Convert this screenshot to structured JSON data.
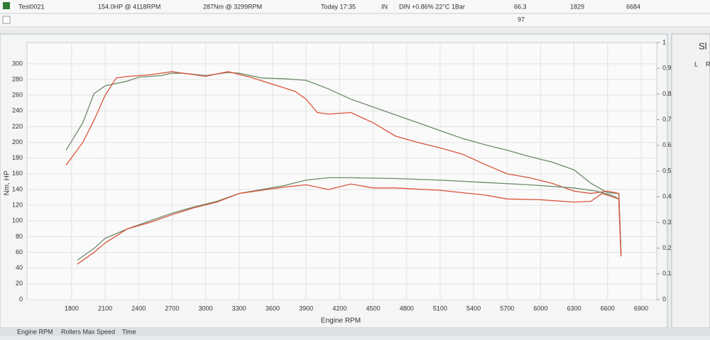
{
  "table": {
    "rows": [
      [
        "Test0021",
        "154.0HP @ 4118RPM",
        "287Nm @ 3299RPM",
        "Today 17:35",
        "IN",
        "DIN +0.86% 22°C 1Bar",
        "66.3",
        "1829",
        "6684"
      ],
      [
        "97"
      ]
    ]
  },
  "side_panel": {
    "title": "Sl",
    "columns": [
      "L",
      "R"
    ]
  },
  "tabs": [
    "Engine RPM",
    "Rollers Max Speed",
    "Time"
  ],
  "chart_data": {
    "type": "line",
    "x_label": "Engine RPM",
    "y_label": "Nm, HP",
    "xlim": [
      1400,
      7040
    ],
    "xticks": [
      1800,
      2100,
      2400,
      2700,
      3000,
      3300,
      3600,
      3900,
      4200,
      4500,
      4800,
      5100,
      5400,
      5700,
      6000,
      6300,
      6600,
      6900
    ],
    "ylim": [
      0,
      327
    ],
    "yticks": [
      0,
      20,
      40,
      60,
      80,
      100,
      120,
      140,
      160,
      180,
      200,
      220,
      240,
      260,
      280,
      300
    ],
    "y2lim": [
      0,
      1
    ],
    "y2ticks": [
      0,
      0.1,
      0.2,
      0.3,
      0.4,
      0.5,
      0.6,
      0.7,
      0.8,
      0.9,
      1
    ],
    "grid": true,
    "series": [
      {
        "color": "#6e8a6a",
        "x": [
          1750,
          1900,
          2000,
          2100,
          2200,
          2300,
          2400,
          2600,
          2700,
          2800,
          3000,
          3200,
          3300,
          3500,
          3700,
          3900,
          4100,
          4300,
          4500,
          4700,
          4900,
          5100,
          5300,
          5500,
          5700,
          5900,
          6100,
          6300,
          6450,
          6600,
          6700,
          6720
        ],
        "values": [
          190,
          225,
          262,
          272,
          275,
          278,
          283,
          285,
          288,
          288,
          285,
          289,
          288,
          282,
          281,
          279,
          268,
          255,
          245,
          235,
          225,
          215,
          205,
          197,
          190,
          182,
          175,
          165,
          148,
          136,
          135,
          60
        ]
      },
      {
        "color": "#d9543a",
        "x": [
          1750,
          1900,
          2000,
          2100,
          2200,
          2300,
          2500,
          2700,
          2900,
          3000,
          3200,
          3400,
          3600,
          3800,
          3900,
          4000,
          4100,
          4300,
          4500,
          4700,
          4900,
          5100,
          5300,
          5500,
          5700,
          5900,
          6100,
          6300,
          6450,
          6600,
          6700,
          6720
        ],
        "values": [
          171,
          200,
          228,
          260,
          282,
          284,
          286,
          290,
          286,
          284,
          290,
          283,
          274,
          265,
          255,
          238,
          236,
          238,
          225,
          208,
          200,
          193,
          185,
          172,
          160,
          155,
          148,
          138,
          135,
          138,
          135,
          55
        ]
      },
      {
        "color": "#6e8a6a",
        "x": [
          1850,
          2000,
          2100,
          2300,
          2500,
          2700,
          2900,
          3100,
          3300,
          3500,
          3700,
          3900,
          4100,
          4300,
          4700,
          5100,
          5500,
          5900,
          6300,
          6500,
          6650,
          6700,
          6720
        ],
        "values": [
          50,
          65,
          78,
          90,
          100,
          110,
          118,
          125,
          135,
          140,
          145,
          152,
          155,
          155,
          154,
          152,
          149,
          146,
          142,
          138,
          132,
          128,
          60
        ]
      },
      {
        "color": "#d9543a",
        "x": [
          1850,
          2000,
          2100,
          2300,
          2500,
          2700,
          2900,
          3100,
          3300,
          3500,
          3700,
          3900,
          4100,
          4300,
          4500,
          4700,
          5100,
          5500,
          5700,
          6000,
          6300,
          6450,
          6550,
          6700,
          6720
        ],
        "values": [
          45,
          60,
          72,
          90,
          98,
          108,
          117,
          124,
          135,
          139,
          143,
          146,
          140,
          147,
          142,
          142,
          139,
          133,
          128,
          127,
          124,
          125,
          135,
          128,
          55
        ]
      }
    ]
  }
}
